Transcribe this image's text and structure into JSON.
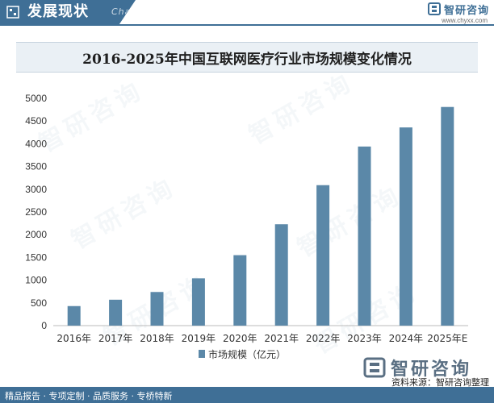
{
  "header": {
    "section_title": "发展现状",
    "section_sub": "Chain",
    "brand_name": "智研咨询",
    "site": "www.chyxx.com"
  },
  "watermark_text": "智研咨询",
  "legend_label": "市场规模（亿元）",
  "footer": {
    "left": "精品报告 · 专项定制 · 品质服务 · 专桥特新",
    "source": "资料来源：智研咨询整理",
    "brand_name": "智研咨询"
  },
  "colors": {
    "brand": "#3f6f96",
    "bar": "#5b88a8"
  },
  "chart_data": {
    "type": "bar",
    "title": "2016-2025年中国互联网医疗行业市场规模变化情况",
    "categories": [
      "2016年",
      "2017年",
      "2018年",
      "2019年",
      "2020年",
      "2021年",
      "2022年",
      "2023年",
      "2024年",
      "2025年E"
    ],
    "series": [
      {
        "name": "市场规模（亿元）",
        "values": [
          430,
          570,
          740,
          1040,
          1550,
          2230,
          3090,
          3940,
          4360,
          4810
        ]
      }
    ],
    "ylim": [
      0,
      5000
    ],
    "yticks": [
      0,
      500,
      1000,
      1500,
      2000,
      2500,
      3000,
      3500,
      4000,
      4500,
      5000
    ],
    "grid": false,
    "legend": "bottom"
  }
}
